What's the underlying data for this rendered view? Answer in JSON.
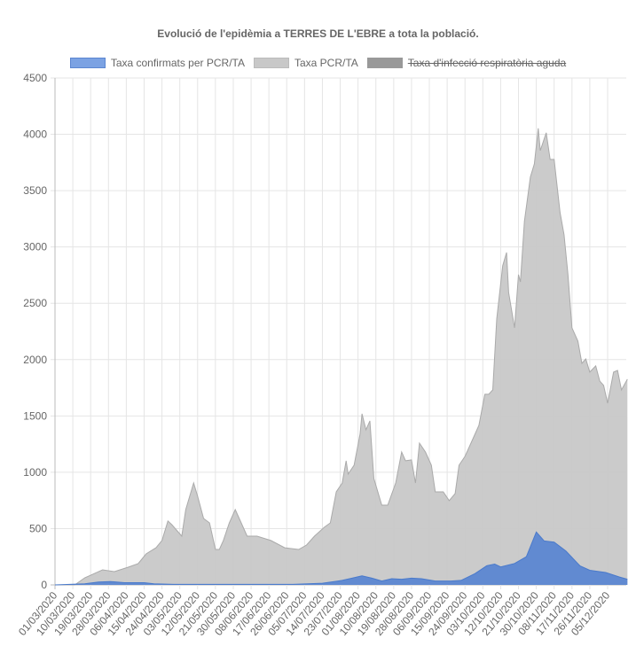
{
  "chart_data": {
    "type": "area",
    "title": "Evolució de l'epidèmia a TERRES DE L'EBRE a tota la població.",
    "xlabel": "",
    "ylabel": "",
    "ylim": [
      0,
      4500
    ],
    "yticks": [
      0,
      500,
      1000,
      1500,
      2000,
      2500,
      3000,
      3500,
      4000,
      4500
    ],
    "xtick_labels": [
      "01/03/2020",
      "10/03/2020",
      "19/03/2020",
      "28/03/2020",
      "06/04/2020",
      "15/04/2020",
      "24/04/2020",
      "03/05/2020",
      "12/05/2020",
      "21/05/2020",
      "30/05/2020",
      "08/06/2020",
      "17/06/2020",
      "26/06/2020",
      "05/07/2020",
      "14/07/2020",
      "23/07/2020",
      "01/08/2020",
      "10/08/2020",
      "19/08/2020",
      "28/08/2020",
      "06/09/2020",
      "15/09/2020",
      "24/09/2020",
      "03/10/2020",
      "12/10/2020",
      "21/10/2020",
      "30/10/2020",
      "08/11/2020",
      "17/11/2020",
      "26/11/2020",
      "05/12/2020"
    ],
    "x_unit": "days since 01/03/2020",
    "x_max": 289,
    "grid": true,
    "legend_position": "top",
    "series": [
      {
        "name": "Taxa confirmats per PCR/TA",
        "color": "#4a7acb",
        "fill": "#5b86d1",
        "legend_color": "#7ba2e3",
        "hidden": false,
        "points": [
          [
            0,
            0
          ],
          [
            15,
            10
          ],
          [
            22,
            25
          ],
          [
            28,
            30
          ],
          [
            35,
            20
          ],
          [
            45,
            20
          ],
          [
            50,
            10
          ],
          [
            60,
            5
          ],
          [
            120,
            5
          ],
          [
            135,
            15
          ],
          [
            145,
            40
          ],
          [
            150,
            60
          ],
          [
            155,
            80
          ],
          [
            160,
            60
          ],
          [
            165,
            35
          ],
          [
            170,
            55
          ],
          [
            175,
            50
          ],
          [
            180,
            60
          ],
          [
            185,
            55
          ],
          [
            192,
            35
          ],
          [
            200,
            35
          ],
          [
            205,
            40
          ],
          [
            212,
            100
          ],
          [
            218,
            170
          ],
          [
            222,
            185
          ],
          [
            225,
            160
          ],
          [
            232,
            190
          ],
          [
            238,
            250
          ],
          [
            243,
            470
          ],
          [
            247,
            390
          ],
          [
            252,
            380
          ],
          [
            258,
            300
          ],
          [
            265,
            170
          ],
          [
            270,
            130
          ],
          [
            278,
            110
          ],
          [
            285,
            70
          ],
          [
            289,
            50
          ]
        ]
      },
      {
        "name": "Taxa PCR/TA",
        "color": "#aaaaaa",
        "fill": "#c8c8c8",
        "legend_color": "#c8c8c8",
        "hidden": false,
        "points": [
          [
            0,
            0
          ],
          [
            10,
            0
          ],
          [
            15,
            63
          ],
          [
            19,
            94
          ],
          [
            24,
            134
          ],
          [
            30,
            118
          ],
          [
            37,
            157
          ],
          [
            42,
            189
          ],
          [
            46,
            275
          ],
          [
            51,
            330
          ],
          [
            54,
            394
          ],
          [
            57,
            567
          ],
          [
            59,
            535
          ],
          [
            64,
            433
          ],
          [
            66,
            669
          ],
          [
            70,
            905
          ],
          [
            72,
            787
          ],
          [
            75,
            590
          ],
          [
            78,
            551
          ],
          [
            81,
            315
          ],
          [
            83,
            315
          ],
          [
            85,
            394
          ],
          [
            88,
            551
          ],
          [
            91,
            669
          ],
          [
            93,
            590
          ],
          [
            97,
            433
          ],
          [
            102,
            433
          ],
          [
            109,
            394
          ],
          [
            116,
            330
          ],
          [
            123,
            315
          ],
          [
            127,
            354
          ],
          [
            131,
            433
          ],
          [
            136,
            512
          ],
          [
            139,
            551
          ],
          [
            142,
            826
          ],
          [
            145,
            905
          ],
          [
            147,
            1102
          ],
          [
            148,
            984
          ],
          [
            151,
            1063
          ],
          [
            154,
            1338
          ],
          [
            155,
            1519
          ],
          [
            157,
            1377
          ],
          [
            159,
            1456
          ],
          [
            161,
            944
          ],
          [
            165,
            708
          ],
          [
            168,
            708
          ],
          [
            172,
            905
          ],
          [
            175,
            1180
          ],
          [
            177,
            1102
          ],
          [
            180,
            1110
          ],
          [
            182,
            905
          ],
          [
            184,
            1259
          ],
          [
            187,
            1180
          ],
          [
            190,
            1063
          ],
          [
            192,
            826
          ],
          [
            196,
            826
          ],
          [
            199,
            748
          ],
          [
            202,
            810
          ],
          [
            204,
            1063
          ],
          [
            207,
            1141
          ],
          [
            211,
            1298
          ],
          [
            214,
            1416
          ],
          [
            217,
            1692
          ],
          [
            219,
            1692
          ],
          [
            221,
            1731
          ],
          [
            223,
            2361
          ],
          [
            226,
            2833
          ],
          [
            228,
            2951
          ],
          [
            229,
            2597
          ],
          [
            232,
            2282
          ],
          [
            234,
            2754
          ],
          [
            235,
            2690
          ],
          [
            237,
            3227
          ],
          [
            240,
            3620
          ],
          [
            242,
            3738
          ],
          [
            244,
            4053
          ],
          [
            245,
            3856
          ],
          [
            248,
            4014
          ],
          [
            250,
            3777
          ],
          [
            252,
            3777
          ],
          [
            255,
            3305
          ],
          [
            257,
            3108
          ],
          [
            259,
            2754
          ],
          [
            261,
            2282
          ],
          [
            264,
            2164
          ],
          [
            266,
            1967
          ],
          [
            268,
            2006
          ],
          [
            270,
            1889
          ],
          [
            273,
            1944
          ],
          [
            275,
            1810
          ],
          [
            277,
            1771
          ],
          [
            279,
            1613
          ],
          [
            282,
            1889
          ],
          [
            284,
            1904
          ],
          [
            286,
            1731
          ],
          [
            289,
            1826
          ]
        ]
      },
      {
        "name": "Taxa d'infecció respiratòria aguda",
        "color": "#999999",
        "fill": "#999999",
        "legend_color": "#999999",
        "hidden": true,
        "points": []
      }
    ]
  }
}
